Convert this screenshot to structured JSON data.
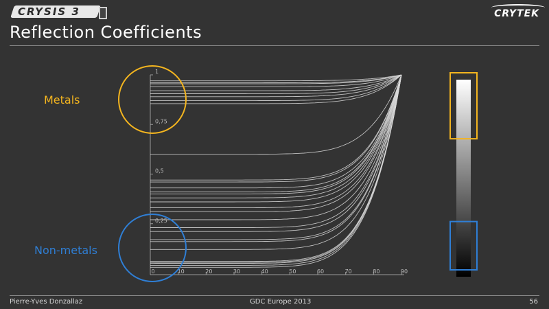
{
  "slide": {
    "logo_left": "CRYSIS 3",
    "logo_right": "CRYTEK",
    "title": "Reflection Coefficients",
    "metals_label": "Metals",
    "nonmetals_label": "Non-metals",
    "footer_author": "Pierre-Yves Donzallaz",
    "footer_event": "GDC Europe 2013",
    "footer_page": "56"
  },
  "colors": {
    "background": "#333333",
    "metals": "#f4b51f",
    "nonmetals": "#2f7fd6",
    "curve": "#d9d9d9"
  },
  "chart_data": {
    "type": "line",
    "xlim": [
      0,
      90
    ],
    "ylim": [
      0,
      1
    ],
    "x_ticks": [
      "0",
      "10",
      "20",
      "30",
      "40",
      "50",
      "60",
      "70",
      "80",
      "90"
    ],
    "y_ticks": [
      "1",
      "0,75",
      "0,5",
      "0,25"
    ],
    "y_tick_values": [
      1,
      0.75,
      0.5,
      0.25
    ],
    "curve_start_values": [
      0.97,
      0.96,
      0.955,
      0.94,
      0.92,
      0.905,
      0.89,
      0.87,
      0.855,
      0.6,
      0.47,
      0.46,
      0.43,
      0.41,
      0.4,
      0.38,
      0.36,
      0.33,
      0.31,
      0.27,
      0.23,
      0.21,
      0.17,
      0.16,
      0.12,
      0.06,
      0.055,
      0.05,
      0.04,
      0.03
    ],
    "curve_end_value": 1,
    "gradient_bar": {
      "from_value": 1,
      "to_value": 0,
      "metals_range": [
        0.7,
        1
      ],
      "nonmetals_range": [
        0,
        0.28
      ]
    }
  }
}
